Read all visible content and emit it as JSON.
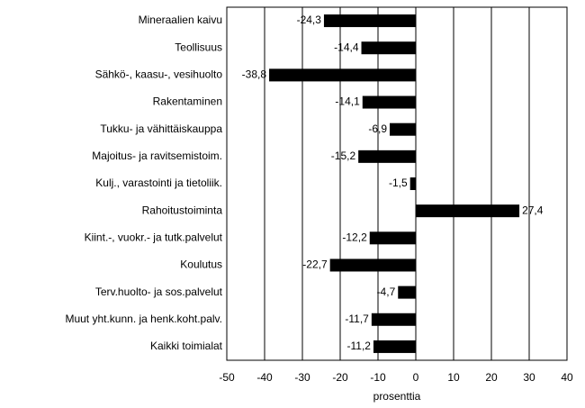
{
  "chart_data": {
    "type": "bar",
    "orientation": "horizontal",
    "categories": [
      "Mineraalien kaivu",
      "Teollisuus",
      "Sähkö-, kaasu-, vesihuolto",
      "Rakentaminen",
      "Tukku- ja vähittäiskauppa",
      "Majoitus- ja ravitsemistoim.",
      "Kulj., varastointi ja tietoliik.",
      "Rahoitustoiminta",
      "Kiint.-, vuokr.- ja tutk.palvelut",
      "Koulutus",
      "Terv.huolto- ja sos.palvelut",
      "Muut yht.kunn. ja henk.koht.palv.",
      "Kaikki toimialat"
    ],
    "values": [
      -24.3,
      -14.4,
      -38.8,
      -14.1,
      -6.9,
      -15.2,
      -1.5,
      27.4,
      -12.2,
      -22.7,
      -4.7,
      -11.7,
      -11.2
    ],
    "value_labels": [
      "-24,3",
      "-14,4",
      "-38,8",
      "-14,1",
      "-6,9",
      "-15,2",
      "-1,5",
      "27,4",
      "-12,2",
      "-22,7",
      "-4,7",
      "-11,7",
      "-11,2"
    ],
    "color": "#000000",
    "xlabel": "prosenttia",
    "xlim": [
      -50,
      40
    ],
    "xticks": [
      -50,
      -40,
      -30,
      -20,
      -10,
      0,
      10,
      20,
      30,
      40
    ],
    "grid": true
  }
}
